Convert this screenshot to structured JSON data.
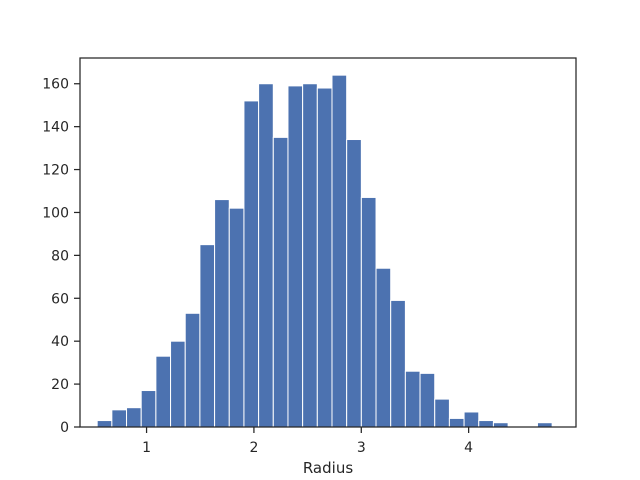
{
  "chart_data": {
    "type": "bar",
    "subtype": "histogram",
    "title": "",
    "xlabel": "Radius",
    "ylabel": "",
    "bar_color": "#4c72b0",
    "xlim": [
      0.38,
      5.0
    ],
    "ylim": [
      0,
      172
    ],
    "x_ticks": [
      1,
      2,
      3,
      4
    ],
    "y_ticks": [
      0,
      20,
      40,
      60,
      80,
      100,
      120,
      140,
      160
    ],
    "bin_start": 0.54,
    "bin_width": 0.1367,
    "values": [
      3,
      8,
      9,
      17,
      33,
      40,
      53,
      85,
      106,
      102,
      152,
      160,
      135,
      159,
      160,
      158,
      164,
      134,
      107,
      74,
      59,
      26,
      25,
      13,
      4,
      7,
      3,
      2,
      0,
      0,
      2
    ],
    "grid": false,
    "legend": "none"
  }
}
